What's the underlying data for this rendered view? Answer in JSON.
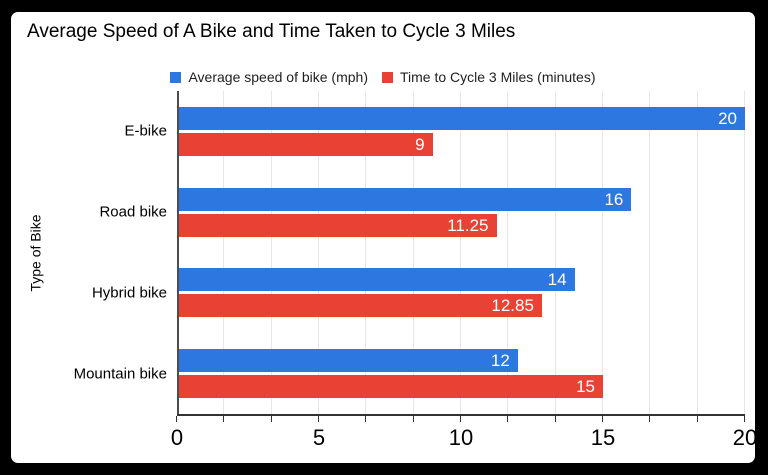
{
  "page": {
    "background_color": "#000000",
    "card_background_color": "#ffffff"
  },
  "chart_data": {
    "type": "bar",
    "orientation": "horizontal",
    "title": "Average Speed of A Bike and Time Taken to Cycle 3 Miles",
    "ylabel": "Type of Bike",
    "categories": [
      "E-bike",
      "Road bike",
      "Hybrid bike",
      "Mountain bike"
    ],
    "series": [
      {
        "name": "Average speed of bike (mph)",
        "color": "#2d78e0",
        "values": [
          20,
          16,
          14,
          12
        ],
        "labels": [
          "20",
          "16",
          "14",
          "12"
        ]
      },
      {
        "name": "Time to Cycle 3 Miles (minutes)",
        "color": "#e94235",
        "values": [
          9,
          11.25,
          12.85,
          15
        ],
        "labels": [
          "9",
          "11.25",
          "12.85",
          "15"
        ]
      }
    ],
    "x_axis": {
      "min": 0,
      "max": 20,
      "tick_labels": [
        "0",
        "5",
        "10",
        "15",
        "20"
      ],
      "grid_intervals": 12
    },
    "legend_position": "top",
    "grid_on": true,
    "colors": {
      "gridline": "#e7e7e7",
      "axis_line": "#4d4d4d",
      "bottom_axis_line": "#333333",
      "tick": "#333333",
      "bar_value_label": "#ffffff",
      "title_text": "#000000",
      "legend_text": "#1f1f1f"
    }
  }
}
